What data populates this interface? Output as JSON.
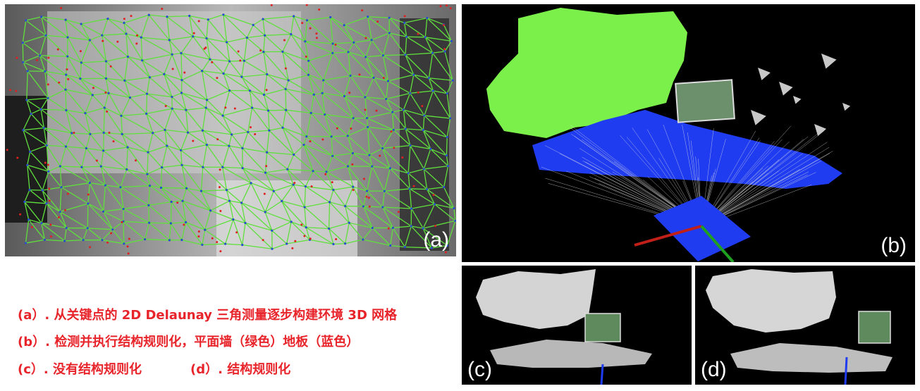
{
  "panels": {
    "a": {
      "label": "(a)"
    },
    "b": {
      "label": "(b)"
    },
    "c": {
      "label": "(c)"
    },
    "d": {
      "label": "(d)"
    }
  },
  "captions": {
    "a": "(a）. 从关键点的 2D Delaunay 三角测量逐步构建环境 3D 网格",
    "b": "(b）. 检测并执行结构规则化，平面墙（绿色）地板（蓝色）",
    "c": "(c）. 没有结构规则化",
    "d": "(d）. 结构规则化"
  },
  "colors": {
    "caption": "#e8242b",
    "mesh_edges": "#5fe03c",
    "keypoints": "#2a4bd0",
    "outlier_points": "#e02020",
    "wall_plane": "#7cf04a",
    "floor_plane": "#1f3cf0",
    "mesh_gray": "#cfcfcf"
  }
}
